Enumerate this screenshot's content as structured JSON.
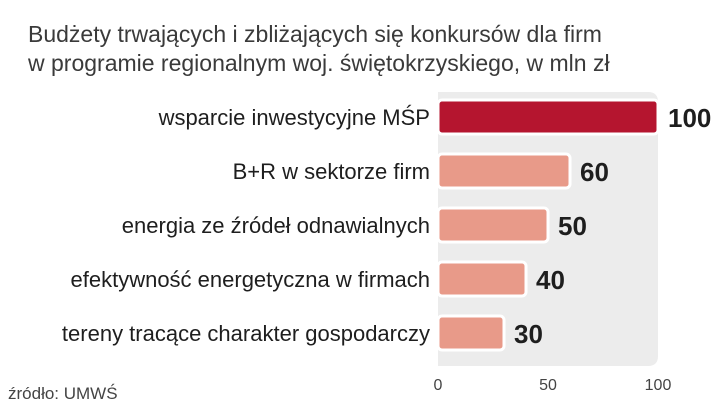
{
  "chart_data": {
    "type": "bar",
    "orientation": "horizontal",
    "title_lines": [
      "Budżety trwających i zbliżających się konkursów dla firm",
      "w programie regionalnym woj. świętokrzyskiego, w mln zł"
    ],
    "categories": [
      "wsparcie inwestycyjne MŚP",
      "B+R w sektorze firm",
      "energia ze źródeł odnawialnych",
      "efektywność energetyczna w firmach",
      "tereny tracące charakter gospodarczy"
    ],
    "values": [
      100,
      60,
      50,
      40,
      30
    ],
    "value_labels": [
      "100",
      "60",
      "50",
      "40",
      "30"
    ],
    "xlim": [
      0,
      100
    ],
    "xticks": [
      0,
      50,
      100
    ],
    "xtick_labels": [
      "0",
      "50",
      "100"
    ],
    "grid": false,
    "colors": {
      "highlight": "#b5152f",
      "bar": "#e89a89",
      "bar_border": "#ffffff",
      "plot_background": "#ececec"
    },
    "source": "źródło: UMWŚ"
  }
}
